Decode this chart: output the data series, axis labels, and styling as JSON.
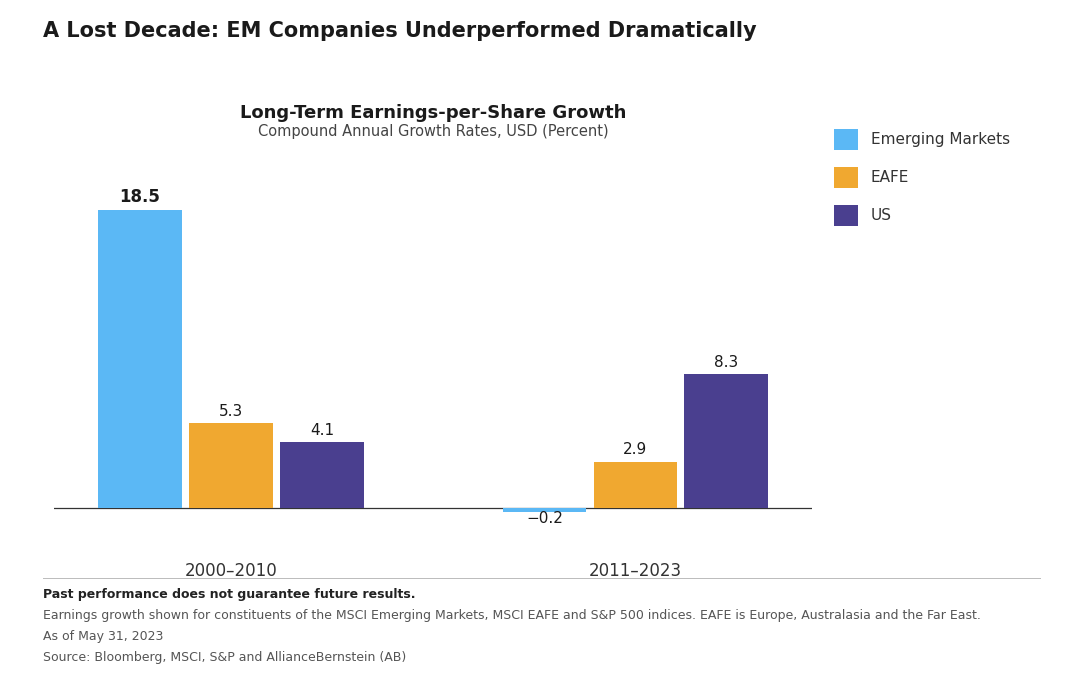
{
  "title": "A Lost Decade: EM Companies Underperformed Dramatically",
  "chart_title": "Long-Term Earnings-per-Share Growth",
  "chart_subtitle": "Compound Annual Growth Rates, USD (Percent)",
  "groups": [
    "2000–2010",
    "2011–2023"
  ],
  "series": [
    "Emerging Markets",
    "EAFE",
    "US"
  ],
  "values": [
    [
      18.5,
      5.3,
      4.1
    ],
    [
      -0.2,
      2.9,
      8.3
    ]
  ],
  "colors": [
    "#5BB8F5",
    "#F0A830",
    "#4A3F8F"
  ],
  "bar_width": 0.18,
  "ylim": [
    -3,
    22
  ],
  "footnote_bold": "Past performance does not guarantee future results.",
  "footnote_lines": [
    "Earnings growth shown for constituents of the MSCI Emerging Markets, MSCI EAFE and S&P 500 indices. EAFE is Europe, Australasia and the Far East.",
    "As of May 31, 2023",
    "Source: Bloomberg, MSCI, S&P and AllianceBernstein (AB)"
  ],
  "background_color": "#FFFFFF",
  "title_fontsize": 15,
  "chart_title_fontsize": 13,
  "subtitle_fontsize": 10.5,
  "label_fontsize": 11,
  "legend_fontsize": 11,
  "group_label_fontsize": 12,
  "footnote_bold_fontsize": 9,
  "footnote_fontsize": 9
}
